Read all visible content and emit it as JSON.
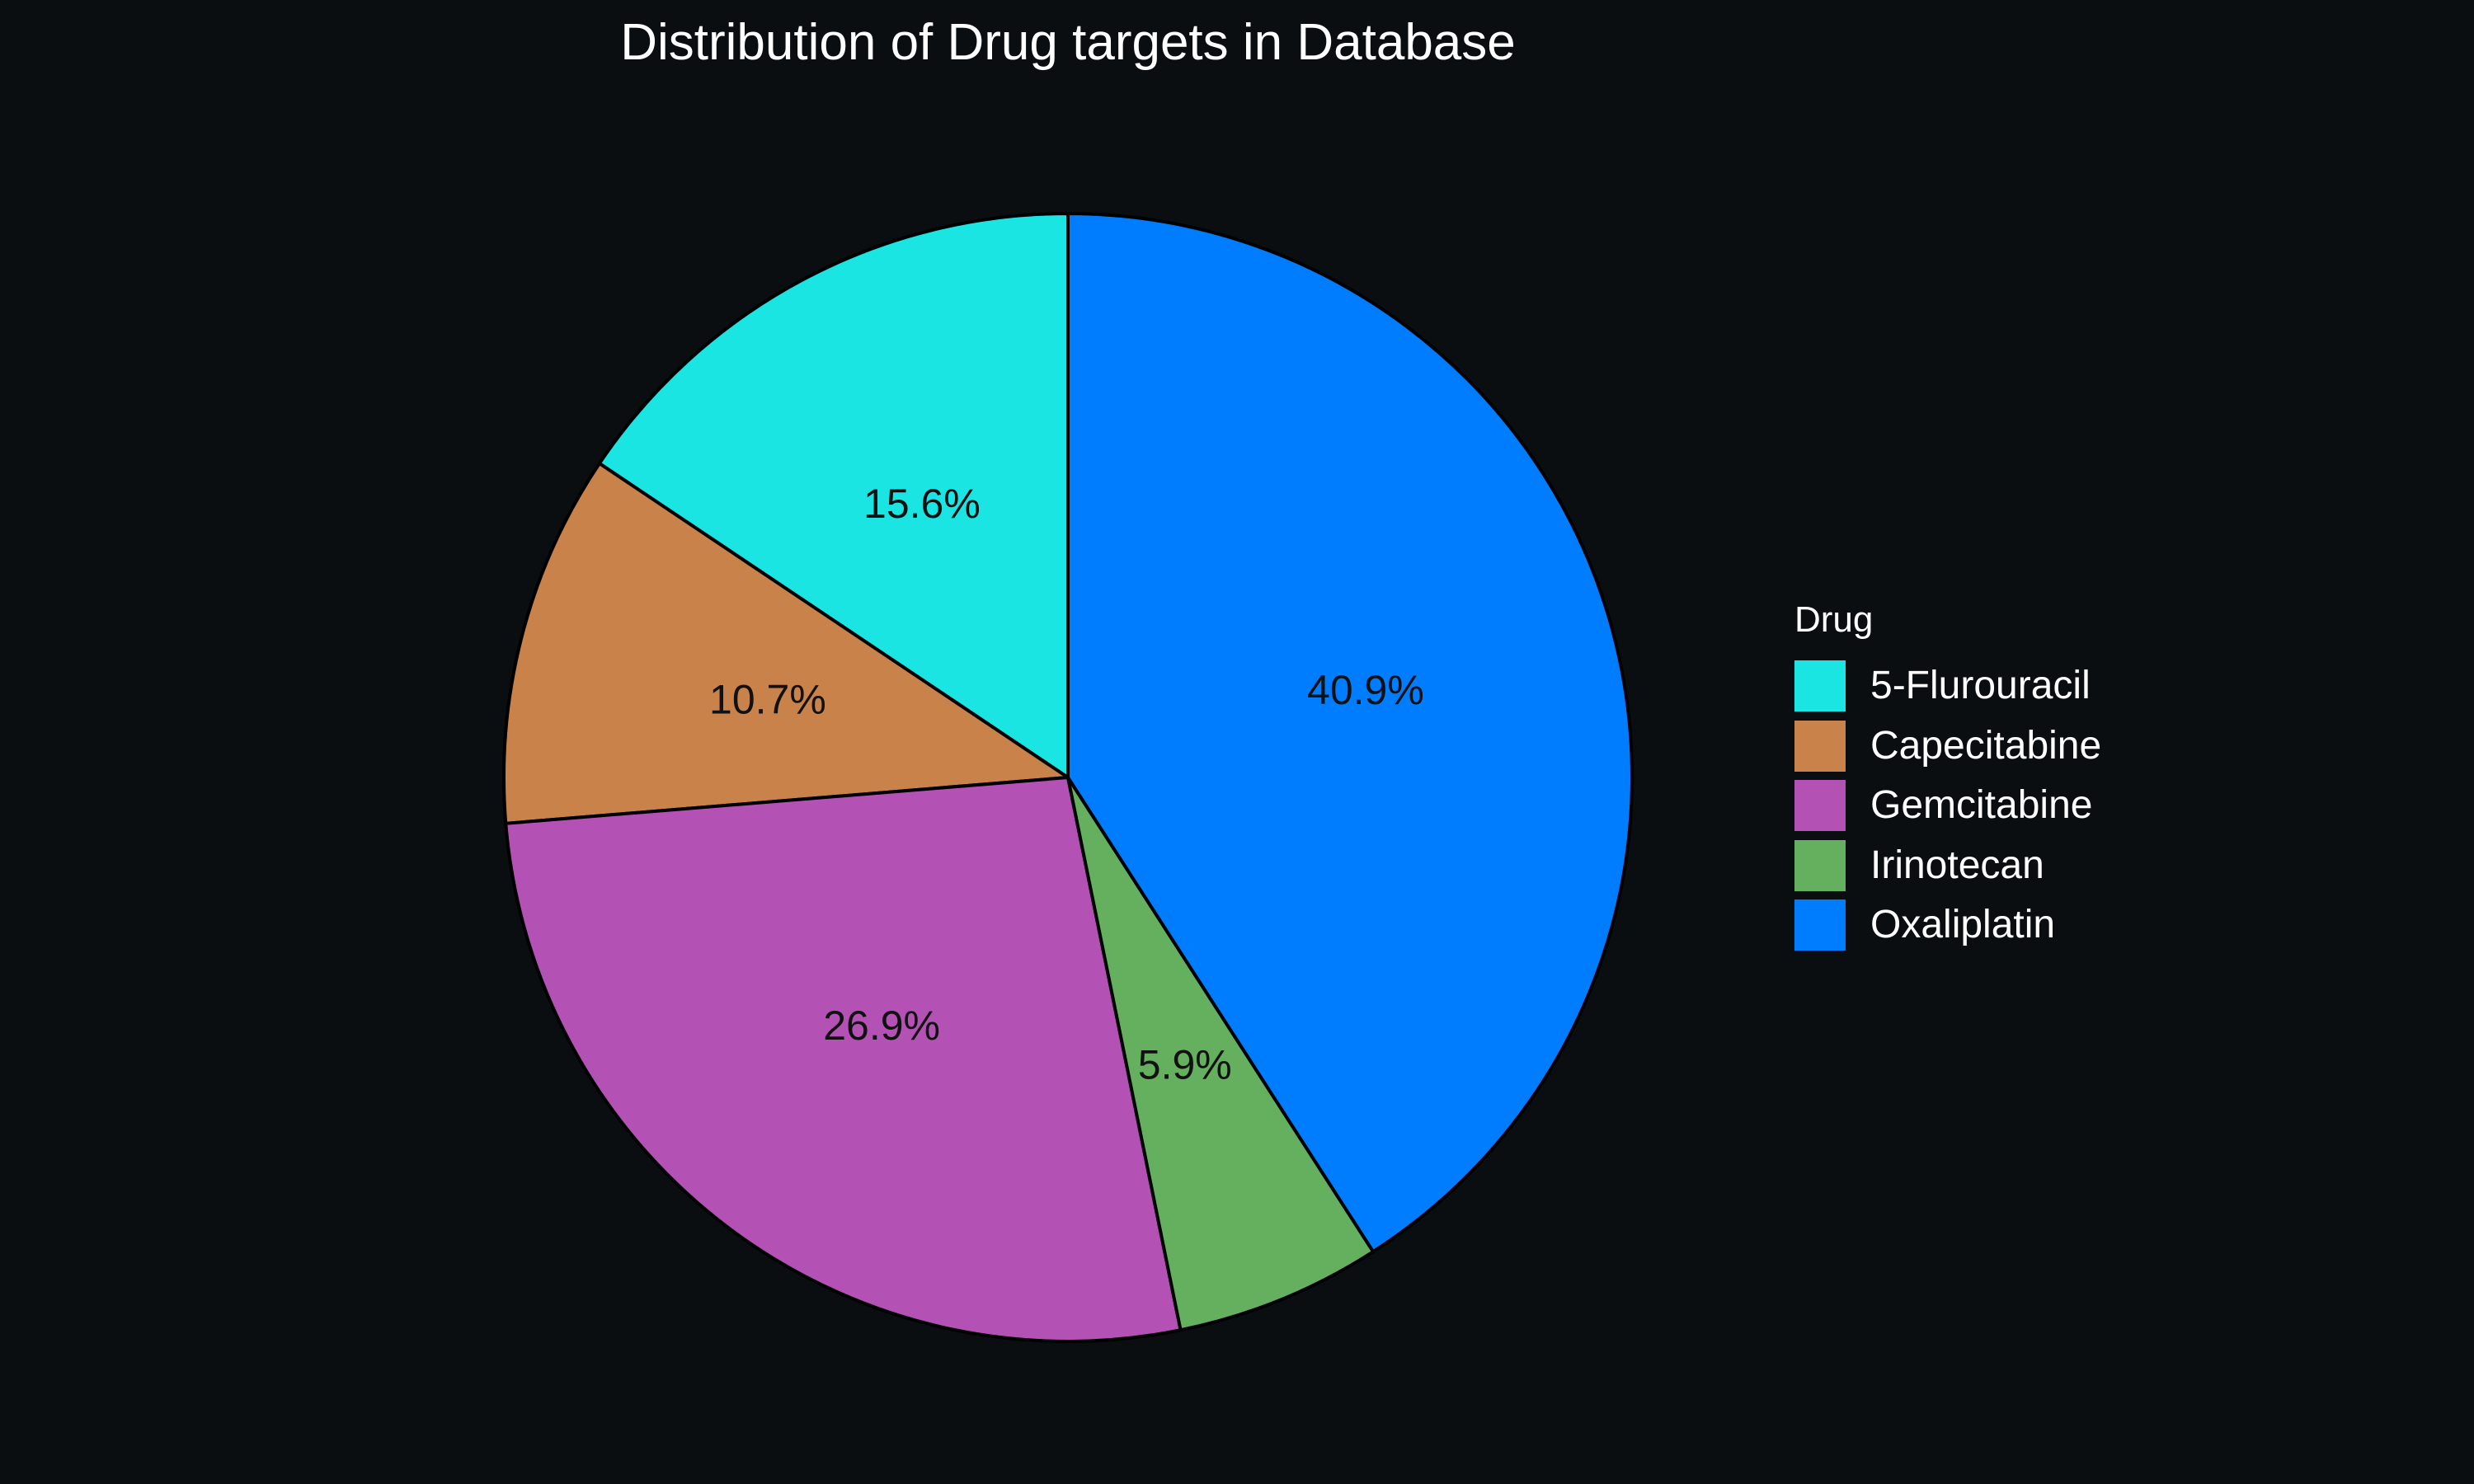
{
  "chart_data": {
    "type": "pie",
    "title": "Distribution of Drug targets in Database",
    "legend_title": "Drug",
    "legend_position": "right",
    "categories": [
      "5-Flurouracil",
      "Capecitabine",
      "Gemcitabine",
      "Irinotecan",
      "Oxaliplatin"
    ],
    "values": [
      15.6,
      10.7,
      26.9,
      5.9,
      40.9
    ],
    "labels": [
      "15.6%",
      "10.7%",
      "26.9%",
      "5.9%",
      "40.9%"
    ],
    "colors": [
      "#1be5e3",
      "#c8824a",
      "#b352b4",
      "#65b05f",
      "#007dff"
    ],
    "stroke_color": "#000000",
    "start_angle_deg": 0,
    "direction": "counterclockwise"
  }
}
